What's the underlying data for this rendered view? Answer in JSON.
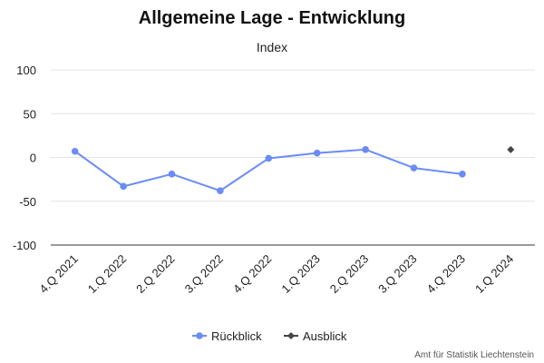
{
  "chart_data": {
    "type": "line",
    "title": "Allgemeine Lage - Entwicklung",
    "subtitle": "Index",
    "categories": [
      "4.Q 2021",
      "1.Q 2022",
      "2.Q 2022",
      "3.Q 2022",
      "4.Q 2022",
      "1.Q 2023",
      "2.Q 2023",
      "3.Q 2023",
      "4.Q 2023",
      "1.Q 2024"
    ],
    "ylim": [
      -100,
      100
    ],
    "yticks": [
      100,
      50,
      0,
      -50,
      -100
    ],
    "grid": true,
    "legend_position": "bottom",
    "series": [
      {
        "name": "Rückblick",
        "color": "#6a8cf6",
        "marker": "circle",
        "values": [
          7,
          -33,
          -19,
          -38,
          -1,
          5,
          9,
          -12,
          -19,
          null
        ]
      },
      {
        "name": "Ausblick",
        "color": "#444444",
        "marker": "diamond",
        "values": [
          null,
          null,
          null,
          null,
          null,
          null,
          null,
          null,
          null,
          9
        ]
      }
    ]
  },
  "credit": "Amt für Statistik Liechtenstein"
}
